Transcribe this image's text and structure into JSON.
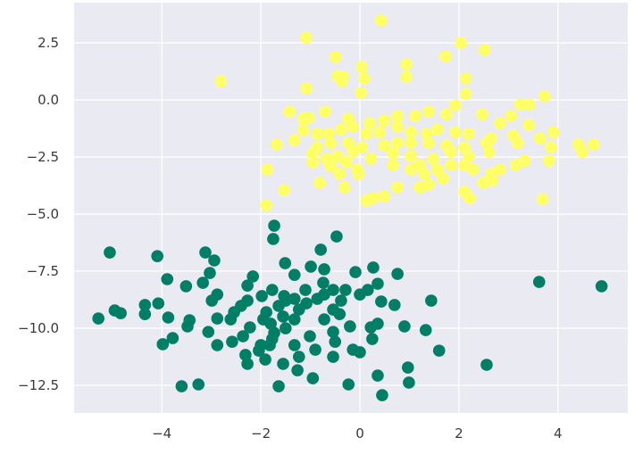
{
  "chart_data": {
    "type": "scatter",
    "title": "",
    "xlabel": "",
    "ylabel": "",
    "xlim": [
      -5.77,
      5.41
    ],
    "ylim": [
      -13.71,
      4.26
    ],
    "grid": true,
    "background_color": "#eaeaf2",
    "grid_color": "#ffffff",
    "x_ticks": [
      -4,
      -2,
      0,
      2,
      4
    ],
    "x_tick_labels": [
      "−4",
      "−2",
      "0",
      "2",
      "4"
    ],
    "y_ticks": [
      2.5,
      0,
      -2.5,
      -5,
      -7.5,
      -10,
      -12.5
    ],
    "y_tick_labels": [
      "2.5",
      "0.0",
      "−2.5",
      "−5.0",
      "−7.5",
      "−10.0",
      "−12.5"
    ],
    "series": [
      {
        "color": "#ffff66",
        "points": [
          [
            0.43,
            3.48
          ],
          [
            -1.08,
            2.73
          ],
          [
            2.04,
            2.5
          ],
          [
            2.52,
            2.19
          ],
          [
            -0.49,
            1.88
          ],
          [
            1.73,
            1.91
          ],
          [
            0.94,
            1.56
          ],
          [
            0.04,
            1.45
          ],
          [
            -0.34,
            1.02
          ],
          [
            -0.45,
            1.05
          ],
          [
            0.09,
            0.94
          ],
          [
            0.94,
            1.02
          ],
          [
            2.14,
            0.94
          ],
          [
            -1.08,
            0.51
          ],
          [
            -0.36,
            0.82
          ],
          [
            0.02,
            0.31
          ],
          [
            2.14,
            0.27
          ],
          [
            3.73,
            0.16
          ],
          [
            3.42,
            -0.2
          ],
          [
            3.24,
            -0.2
          ],
          [
            -1.42,
            -0.51
          ],
          [
            -1.14,
            -0.82
          ],
          [
            -1.03,
            -0.78
          ],
          [
            -0.7,
            -0.51
          ],
          [
            -0.23,
            -0.82
          ],
          [
            0.2,
            -1.02
          ],
          [
            0.49,
            -0.9
          ],
          [
            0.76,
            -0.7
          ],
          [
            1.12,
            -0.7
          ],
          [
            1.39,
            -0.51
          ],
          [
            1.75,
            -0.63
          ],
          [
            1.93,
            -0.23
          ],
          [
            2.47,
            -0.63
          ],
          [
            2.83,
            -1.02
          ],
          [
            3.05,
            -0.7
          ],
          [
            3.41,
            -1.09
          ],
          [
            -1.14,
            -1.33
          ],
          [
            -0.86,
            -1.48
          ],
          [
            -0.63,
            -1.48
          ],
          [
            -0.38,
            -1.29
          ],
          [
            -0.14,
            -1.17
          ],
          [
            0.13,
            -1.48
          ],
          [
            0.4,
            -1.41
          ],
          [
            0.76,
            -1.17
          ],
          [
            1.03,
            -1.41
          ],
          [
            1.35,
            -1.48
          ],
          [
            1.57,
            -1.29
          ],
          [
            1.93,
            -1.41
          ],
          [
            2.2,
            -1.48
          ],
          [
            2.65,
            -1.68
          ],
          [
            3.1,
            -1.56
          ],
          [
            3.64,
            -1.68
          ],
          [
            3.91,
            -1.41
          ],
          [
            -1.68,
            -1.95
          ],
          [
            -1.32,
            -1.76
          ],
          [
            -0.86,
            -2.07
          ],
          [
            -0.59,
            -1.88
          ],
          [
            -0.23,
            -1.88
          ],
          [
            0.04,
            -2.07
          ],
          [
            0.49,
            -1.99
          ],
          [
            0.76,
            -1.88
          ],
          [
            1.03,
            -1.88
          ],
          [
            1.39,
            -1.88
          ],
          [
            1.75,
            -1.99
          ],
          [
            2.11,
            -2.07
          ],
          [
            2.56,
            -1.88
          ],
          [
            3.19,
            -1.88
          ],
          [
            -1.87,
            -3.05
          ],
          [
            -0.95,
            -2.34
          ],
          [
            -0.68,
            -2.58
          ],
          [
            -0.45,
            -2.46
          ],
          [
            -0.14,
            -2.27
          ],
          [
            0.22,
            -2.58
          ],
          [
            0.67,
            -2.34
          ],
          [
            1.03,
            -2.46
          ],
          [
            1.48,
            -2.58
          ],
          [
            1.84,
            -2.27
          ],
          [
            2.2,
            -2.46
          ],
          [
            2.61,
            -2.27
          ],
          [
            3.15,
            -2.85
          ],
          [
            3.33,
            -2.66
          ],
          [
            3.86,
            -2.07
          ],
          [
            4.41,
            -1.95
          ],
          [
            4.49,
            -2.27
          ],
          [
            4.72,
            -1.95
          ],
          [
            3.82,
            -2.66
          ],
          [
            -0.95,
            -2.73
          ],
          [
            -0.59,
            -2.89
          ],
          [
            -0.27,
            -2.73
          ],
          [
            -0.05,
            -3.05
          ],
          [
            0.67,
            -2.85
          ],
          [
            1.21,
            -2.85
          ],
          [
            1.57,
            -3.05
          ],
          [
            2.11,
            -2.85
          ],
          [
            2.83,
            -3.05
          ],
          [
            -1.89,
            -4.61
          ],
          [
            -1.53,
            -3.95
          ],
          [
            -0.81,
            -3.63
          ],
          [
            -0.41,
            -3.24
          ],
          [
            -0.31,
            -3.83
          ],
          [
            -0.02,
            -3.24
          ],
          [
            0.13,
            -4.41
          ],
          [
            0.27,
            -4.3
          ],
          [
            0.49,
            -4.22
          ],
          [
            0.76,
            -3.83
          ],
          [
            1.21,
            -3.83
          ],
          [
            1.39,
            -3.71
          ],
          [
            1.68,
            -3.44
          ],
          [
            2.11,
            -4.02
          ],
          [
            2.22,
            -4.3
          ],
          [
            2.49,
            -3.63
          ],
          [
            2.68,
            -3.52
          ],
          [
            3.69,
            -4.34
          ],
          [
            1.03,
            -3.05
          ],
          [
            1.3,
            -3.24
          ],
          [
            2.29,
            -3.05
          ],
          [
            2.65,
            -3.24
          ],
          [
            1.84,
            -2.85
          ],
          [
            -2.81,
            0.82
          ]
        ]
      },
      {
        "color": "#007f66",
        "points": [
          [
            -1.73,
            -5.51
          ],
          [
            -1.75,
            -6.09
          ],
          [
            -0.47,
            -5.98
          ],
          [
            -0.79,
            -6.56
          ],
          [
            -5.05,
            -6.68
          ],
          [
            -4.09,
            -6.84
          ],
          [
            -3.12,
            -6.68
          ],
          [
            -2.94,
            -7.03
          ],
          [
            -3.03,
            -7.58
          ],
          [
            -3.17,
            -8.01
          ],
          [
            -3.89,
            -7.85
          ],
          [
            -3.51,
            -8.16
          ],
          [
            -1.51,
            -7.15
          ],
          [
            -1.32,
            -7.66
          ],
          [
            -0.99,
            -7.3
          ],
          [
            -0.72,
            -7.42
          ],
          [
            -0.09,
            -7.54
          ],
          [
            0.27,
            -7.34
          ],
          [
            0.76,
            -7.62
          ],
          [
            1.44,
            -8.79
          ],
          [
            0.7,
            -8.98
          ],
          [
            0.43,
            -8.83
          ],
          [
            1.6,
            -10.98
          ],
          [
            1.33,
            -10.08
          ],
          [
            0.9,
            -9.92
          ],
          [
            0.97,
            -11.72
          ],
          [
            0.99,
            -12.38
          ],
          [
            0.45,
            -12.93
          ],
          [
            0.36,
            -12.07
          ],
          [
            -0.23,
            -12.46
          ],
          [
            -0.95,
            -12.19
          ],
          [
            -1.64,
            -12.54
          ],
          [
            -3.26,
            -12.46
          ],
          [
            -3.6,
            -12.54
          ],
          [
            -3.98,
            -10.7
          ],
          [
            -3.78,
            -10.43
          ],
          [
            -5.28,
            -9.57
          ],
          [
            -4.95,
            -9.22
          ],
          [
            -4.83,
            -9.34
          ],
          [
            -4.34,
            -8.98
          ],
          [
            -4.34,
            -9.38
          ],
          [
            -4.07,
            -8.91
          ],
          [
            -3.87,
            -9.53
          ],
          [
            -3.44,
            -9.65
          ],
          [
            -3.48,
            -9.92
          ],
          [
            -2.88,
            -8.52
          ],
          [
            -2.99,
            -8.79
          ],
          [
            -2.88,
            -9.57
          ],
          [
            -3.06,
            -10.16
          ],
          [
            -2.88,
            -10.74
          ],
          [
            -2.58,
            -10.59
          ],
          [
            -2.36,
            -10.35
          ],
          [
            -2.22,
            -9.96
          ],
          [
            -2.31,
            -11.17
          ],
          [
            -2.27,
            -11.56
          ],
          [
            -2.04,
            -10.98
          ],
          [
            -1.91,
            -11.37
          ],
          [
            -1.55,
            -11.56
          ],
          [
            -1.26,
            -11.84
          ],
          [
            -1.23,
            -11.25
          ],
          [
            -0.9,
            -10.94
          ],
          [
            -1.01,
            -10.35
          ],
          [
            -1.32,
            -10.74
          ],
          [
            -0.54,
            -11.25
          ],
          [
            -0.5,
            -10.59
          ],
          [
            -0.54,
            -10.16
          ],
          [
            -0.72,
            -9.61
          ],
          [
            -0.2,
            -9.92
          ],
          [
            -0.14,
            -10.94
          ],
          [
            0.0,
            -11.05
          ],
          [
            0.25,
            -10.47
          ],
          [
            0.22,
            -9.96
          ],
          [
            0.36,
            -9.8
          ],
          [
            -0.41,
            -9.38
          ],
          [
            -0.54,
            -9.18
          ],
          [
            -0.38,
            -8.79
          ],
          [
            0.0,
            -8.52
          ],
          [
            0.16,
            -8.32
          ],
          [
            0.36,
            -8.05
          ],
          [
            -0.29,
            -8.32
          ],
          [
            -0.54,
            -8.32
          ],
          [
            -0.72,
            -8.52
          ],
          [
            -0.74,
            -8.01
          ],
          [
            -0.86,
            -8.71
          ],
          [
            -1.1,
            -8.32
          ],
          [
            -1.32,
            -8.71
          ],
          [
            -1.23,
            -9.18
          ],
          [
            -1.32,
            -9.61
          ],
          [
            -1.5,
            -10.0
          ],
          [
            -1.55,
            -9.49
          ],
          [
            -1.53,
            -8.59
          ],
          [
            -1.77,
            -8.32
          ],
          [
            -1.98,
            -8.59
          ],
          [
            -2.16,
            -7.73
          ],
          [
            -2.27,
            -8.13
          ],
          [
            -2.27,
            -8.79
          ],
          [
            -2.4,
            -9.02
          ],
          [
            -2.54,
            -9.3
          ],
          [
            -2.61,
            -9.61
          ],
          [
            -1.89,
            -9.3
          ],
          [
            -1.95,
            -9.61
          ],
          [
            -1.8,
            -9.8
          ],
          [
            -1.73,
            -10.2
          ],
          [
            -1.77,
            -10.47
          ],
          [
            -1.82,
            -10.74
          ],
          [
            -2.0,
            -10.74
          ],
          [
            -1.64,
            -9.02
          ],
          [
            -1.5,
            -8.79
          ],
          [
            -1.08,
            -8.91
          ],
          [
            3.62,
            -7.97
          ],
          [
            4.88,
            -8.16
          ],
          [
            2.56,
            -11.6
          ]
        ]
      }
    ]
  }
}
